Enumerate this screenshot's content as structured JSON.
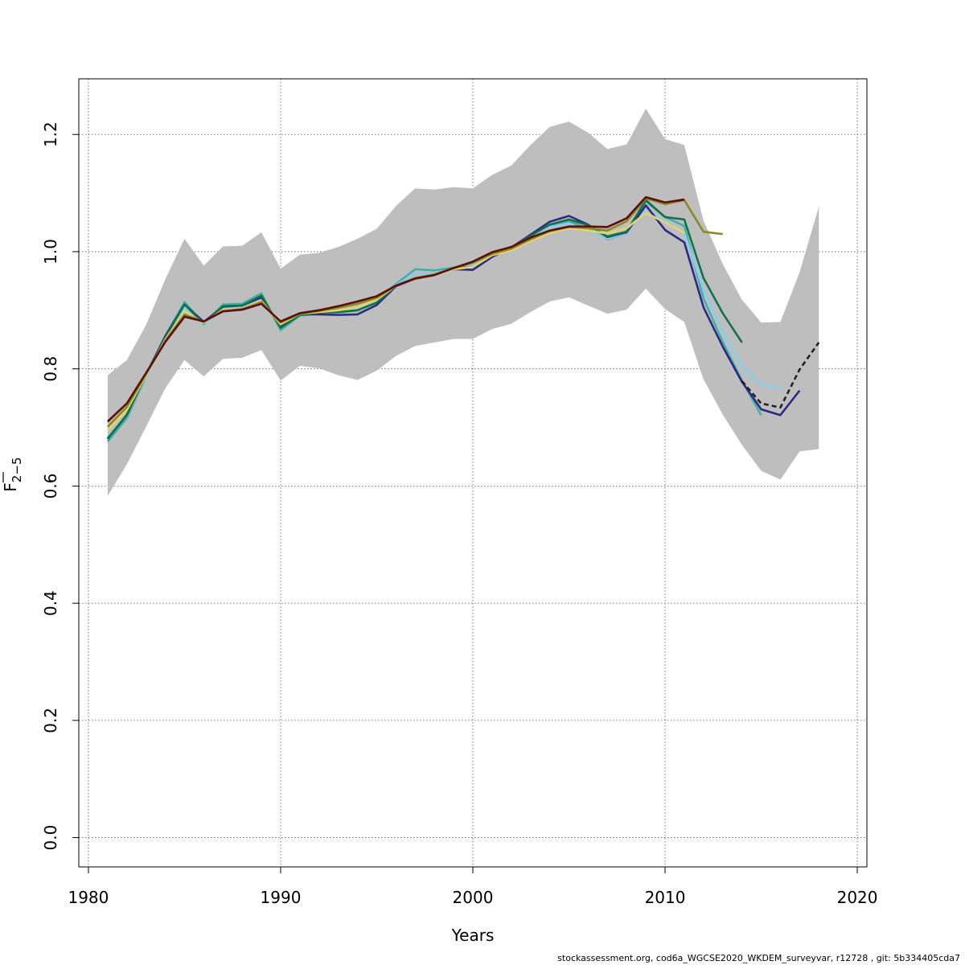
{
  "chart_data": {
    "type": "line",
    "xlabel": "Years",
    "ylabel_main": "F",
    "ylabel_sub": "2−5",
    "xlim": [
      1979.5,
      2020.5
    ],
    "ylim": [
      -0.05,
      1.295
    ],
    "x_ticks": [
      1980,
      1990,
      2000,
      2010,
      2020
    ],
    "y_ticks": [
      0.0,
      0.2,
      0.4,
      0.6,
      0.8,
      1.0,
      1.2
    ],
    "x_tick_labels": [
      "1980",
      "1990",
      "2000",
      "2010",
      "2020"
    ],
    "y_tick_labels": [
      "0.0",
      "0.2",
      "0.4",
      "0.6",
      "0.8",
      "1.0",
      "1.2"
    ],
    "grid": true,
    "band": {
      "color": "#bebebe",
      "x": [
        1981,
        1982,
        1983,
        1984,
        1985,
        1986,
        1987,
        1988,
        1989,
        1990,
        1991,
        1992,
        1993,
        1994,
        1995,
        1996,
        1997,
        1998,
        1999,
        2000,
        2001,
        2002,
        2003,
        2004,
        2005,
        2006,
        2007,
        2008,
        2009,
        2010,
        2011,
        2012,
        2013,
        2014,
        2015,
        2016,
        2017,
        2018
      ],
      "upper": [
        0.789,
        0.815,
        0.875,
        0.953,
        1.022,
        0.976,
        1.009,
        1.01,
        1.033,
        0.971,
        0.995,
        0.998,
        1.008,
        1.022,
        1.039,
        1.078,
        1.108,
        1.106,
        1.11,
        1.108,
        1.131,
        1.147,
        1.182,
        1.213,
        1.222,
        1.203,
        1.175,
        1.183,
        1.244,
        1.192,
        1.182,
        1.053,
        0.979,
        0.918,
        0.879,
        0.88,
        0.965,
        1.077
      ],
      "lower": [
        0.583,
        0.637,
        0.701,
        0.767,
        0.815,
        0.787,
        0.817,
        0.819,
        0.832,
        0.78,
        0.805,
        0.801,
        0.789,
        0.781,
        0.797,
        0.822,
        0.839,
        0.845,
        0.851,
        0.851,
        0.868,
        0.877,
        0.897,
        0.915,
        0.922,
        0.908,
        0.894,
        0.901,
        0.937,
        0.902,
        0.88,
        0.782,
        0.722,
        0.67,
        0.626,
        0.611,
        0.659,
        0.663
      ]
    },
    "series": [
      {
        "color": "#3fb0a6",
        "dashed": false,
        "x": [
          1981,
          1982,
          1983,
          1984,
          1985,
          1986,
          1987,
          1988,
          1989,
          1990,
          1991,
          1992,
          1993,
          1994,
          1995,
          1996,
          1997,
          1998,
          1999,
          2000,
          2001,
          2002,
          2003,
          2004,
          2005,
          2006,
          2007,
          2008,
          2009,
          2010,
          2011,
          2012,
          2013,
          2014,
          2015
        ],
        "y": [
          0.676,
          0.716,
          0.786,
          0.856,
          0.914,
          0.876,
          0.91,
          0.911,
          0.929,
          0.866,
          0.891,
          0.894,
          0.896,
          0.9,
          0.915,
          0.945,
          0.97,
          0.968,
          0.973,
          0.977,
          0.996,
          1.004,
          1.027,
          1.046,
          1.052,
          1.039,
          1.021,
          1.031,
          1.086,
          1.059,
          1.044,
          0.92,
          0.846,
          0.78,
          0.721
        ]
      },
      {
        "color": "#87ceeb",
        "dashed": false,
        "x": [
          1981,
          1982,
          1983,
          1984,
          1985,
          1986,
          1987,
          1988,
          1989,
          1990,
          1991,
          1992,
          1993,
          1994,
          1995,
          1996,
          1997,
          1998,
          1999,
          2000,
          2001,
          2002,
          2003,
          2004,
          2005,
          2006,
          2007,
          2008,
          2009,
          2010,
          2011,
          2012,
          2013,
          2014,
          2015,
          2016
        ],
        "y": [
          0.684,
          0.72,
          0.786,
          0.853,
          0.905,
          0.874,
          0.904,
          0.906,
          0.922,
          0.874,
          0.893,
          0.895,
          0.897,
          0.901,
          0.914,
          0.943,
          0.962,
          0.963,
          0.971,
          0.978,
          0.995,
          1.003,
          1.025,
          1.042,
          1.047,
          1.036,
          1.022,
          1.031,
          1.074,
          1.052,
          1.032,
          0.935,
          0.864,
          0.804,
          0.774,
          0.767
        ]
      },
      {
        "color": "#2d2a85",
        "dashed": false,
        "x": [
          1981,
          1982,
          1983,
          1984,
          1985,
          1986,
          1987,
          1988,
          1989,
          1990,
          1991,
          1992,
          1993,
          1994,
          1995,
          1996,
          1997,
          1998,
          1999,
          2000,
          2001,
          2002,
          2003,
          2004,
          2005,
          2006,
          2007,
          2008,
          2009,
          2010,
          2011,
          2012,
          2013,
          2014,
          2015,
          2016,
          2017
        ],
        "y": [
          0.681,
          0.721,
          0.79,
          0.856,
          0.91,
          0.88,
          0.906,
          0.908,
          0.922,
          0.872,
          0.893,
          0.893,
          0.892,
          0.893,
          0.909,
          0.941,
          0.954,
          0.961,
          0.97,
          0.969,
          0.991,
          1.007,
          1.029,
          1.051,
          1.061,
          1.046,
          1.025,
          1.033,
          1.079,
          1.037,
          1.016,
          0.905,
          0.838,
          0.778,
          0.731,
          0.721,
          0.763
        ]
      },
      {
        "color": "#137247",
        "dashed": false,
        "x": [
          1981,
          1982,
          1983,
          1984,
          1985,
          1986,
          1987,
          1988,
          1989,
          1990,
          1991,
          1992,
          1993,
          1994,
          1995,
          1996,
          1997,
          1998,
          1999,
          2000,
          2001,
          2002,
          2003,
          2004,
          2005,
          2006,
          2007,
          2008,
          2009,
          2010,
          2011,
          2012,
          2013,
          2014
        ],
        "y": [
          0.68,
          0.722,
          0.789,
          0.854,
          0.91,
          0.877,
          0.907,
          0.908,
          0.925,
          0.87,
          0.892,
          0.896,
          0.897,
          0.9,
          0.913,
          0.942,
          0.955,
          0.961,
          0.972,
          0.974,
          0.994,
          1.006,
          1.027,
          1.046,
          1.055,
          1.045,
          1.026,
          1.034,
          1.088,
          1.059,
          1.055,
          0.955,
          0.895,
          0.845
        ]
      },
      {
        "color": "#e6d36f",
        "dashed": false,
        "x": [
          1981,
          1982,
          1983,
          1984,
          1985,
          1986,
          1987,
          1988,
          1989,
          1990,
          1991,
          1992,
          1993,
          1994,
          1995,
          1996,
          1997,
          1998,
          1999,
          2000,
          2001,
          2002,
          2003,
          2004,
          2005,
          2006,
          2007,
          2008,
          2009,
          2010,
          2011
        ],
        "y": [
          0.695,
          0.73,
          0.789,
          0.85,
          0.898,
          0.878,
          0.901,
          0.903,
          0.916,
          0.876,
          0.894,
          0.897,
          0.9,
          0.905,
          0.918,
          0.942,
          0.954,
          0.96,
          0.97,
          0.974,
          0.994,
          1.002,
          1.018,
          1.032,
          1.04,
          1.036,
          1.031,
          1.04,
          1.066,
          1.05,
          1.032
        ]
      },
      {
        "color": "#8a8a27",
        "dashed": false,
        "x": [
          1981,
          1982,
          1983,
          1984,
          1985,
          1986,
          1987,
          1988,
          1989,
          1990,
          1991,
          1992,
          1993,
          1994,
          1995,
          1996,
          1997,
          1998,
          1999,
          2000,
          2001,
          2002,
          2003,
          2004,
          2005,
          2006,
          2007,
          2008,
          2009,
          2010,
          2011,
          2012,
          2013
        ],
        "y": [
          0.701,
          0.735,
          0.791,
          0.848,
          0.893,
          0.88,
          0.899,
          0.902,
          0.914,
          0.879,
          0.894,
          0.899,
          0.904,
          0.911,
          0.921,
          0.942,
          0.955,
          0.961,
          0.972,
          0.981,
          0.996,
          1.005,
          1.021,
          1.035,
          1.042,
          1.04,
          1.036,
          1.052,
          1.091,
          1.081,
          1.088,
          1.034,
          1.03
        ]
      },
      {
        "color": "#5e0d0d",
        "dashed": false,
        "x": [
          1981,
          1982,
          1983,
          1984,
          1985,
          1986,
          1987,
          1988,
          1989,
          1990,
          1991,
          1992,
          1993,
          1994,
          1995,
          1996,
          1997,
          1998,
          1999,
          2000,
          2001,
          2002,
          2003,
          2004,
          2005,
          2006,
          2007,
          2008,
          2009,
          2010,
          2011
        ],
        "y": [
          0.71,
          0.741,
          0.793,
          0.846,
          0.889,
          0.881,
          0.898,
          0.901,
          0.911,
          0.881,
          0.895,
          0.9,
          0.907,
          0.915,
          0.924,
          0.942,
          0.954,
          0.96,
          0.972,
          0.983,
          0.999,
          1.008,
          1.024,
          1.036,
          1.043,
          1.043,
          1.042,
          1.057,
          1.093,
          1.084,
          1.089
        ]
      },
      {
        "color": "#222222",
        "dashed": true,
        "x": [
          2014,
          2015,
          2016,
          2017,
          2018
        ],
        "y": [
          0.779,
          0.741,
          0.734,
          0.799,
          0.845
        ]
      }
    ]
  },
  "footer": "stockassessment.org, cod6a_WGCSE2020_WKDEM_surveyvar, r12728 , git: 5b334405cda7"
}
